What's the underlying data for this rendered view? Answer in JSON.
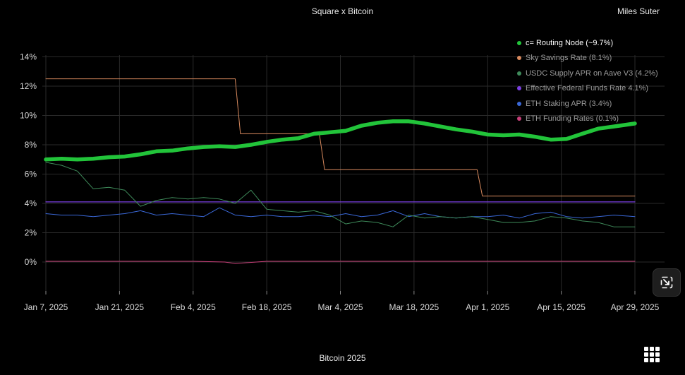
{
  "header": {
    "title": "Square x Bitcoin",
    "author": "Miles Suter"
  },
  "footer": {
    "title": "Bitcoin 2025"
  },
  "icons": {
    "zoom": "collapse-arrow-icon",
    "menu": "grid-menu-icon"
  },
  "chart_data": {
    "type": "line",
    "title": "",
    "xlabel": "",
    "ylabel": "",
    "ylim": [
      -2,
      14
    ],
    "y_ticks": [
      0,
      2,
      4,
      6,
      8,
      10,
      12,
      14
    ],
    "y_tick_labels": [
      "0%",
      "2%",
      "4%",
      "6%",
      "8%",
      "10%",
      "12%",
      "14%"
    ],
    "x_range": [
      "2025-01-07",
      "2025-04-29"
    ],
    "x_ticks": [
      "2025-01-07",
      "2025-01-21",
      "2025-02-04",
      "2025-02-18",
      "2025-03-04",
      "2025-03-18",
      "2025-04-01",
      "2025-04-15",
      "2025-04-29"
    ],
    "x_tick_labels": [
      "Jan 7, 2025",
      "Jan 21, 2025",
      "Feb 4, 2025",
      "Feb 18, 2025",
      "Mar 4, 2025",
      "Mar 18, 2025",
      "Apr 1, 2025",
      "Apr 15, 2025",
      "Apr 29, 2025"
    ],
    "grid": true,
    "legend_position": "top-right",
    "series": [
      {
        "name": "c= Routing Node (~9.7%)",
        "color": "#22c43a",
        "x": [
          "2025-01-07",
          "2025-01-10",
          "2025-01-13",
          "2025-01-16",
          "2025-01-19",
          "2025-01-22",
          "2025-01-25",
          "2025-01-28",
          "2025-01-31",
          "2025-02-03",
          "2025-02-06",
          "2025-02-09",
          "2025-02-12",
          "2025-02-15",
          "2025-02-18",
          "2025-02-21",
          "2025-02-24",
          "2025-02-27",
          "2025-03-02",
          "2025-03-05",
          "2025-03-08",
          "2025-03-11",
          "2025-03-14",
          "2025-03-17",
          "2025-03-20",
          "2025-03-23",
          "2025-03-26",
          "2025-03-29",
          "2025-04-01",
          "2025-04-04",
          "2025-04-07",
          "2025-04-10",
          "2025-04-13",
          "2025-04-16",
          "2025-04-19",
          "2025-04-22",
          "2025-04-25",
          "2025-04-29"
        ],
        "values": [
          7.0,
          7.05,
          7.0,
          7.05,
          7.15,
          7.2,
          7.35,
          7.55,
          7.6,
          7.75,
          7.85,
          7.9,
          7.85,
          8.0,
          8.2,
          8.35,
          8.45,
          8.75,
          8.85,
          8.95,
          9.3,
          9.5,
          9.6,
          9.6,
          9.45,
          9.25,
          9.05,
          8.9,
          8.7,
          8.65,
          8.7,
          8.55,
          8.35,
          8.4,
          8.75,
          9.1,
          9.25,
          9.45
        ]
      },
      {
        "name": "Sky Savings Rate (8.1%)",
        "color": "#d98a5e",
        "x": [
          "2025-01-07",
          "2025-02-12",
          "2025-02-13",
          "2025-02-28",
          "2025-03-01",
          "2025-03-30",
          "2025-03-31",
          "2025-04-29"
        ],
        "values": [
          12.5,
          12.5,
          8.75,
          8.75,
          6.3,
          6.3,
          4.5,
          4.5
        ]
      },
      {
        "name": "USDC Supply APR on Aave V3 (4.2%)",
        "color": "#3e8a5a",
        "x": [
          "2025-01-07",
          "2025-01-10",
          "2025-01-13",
          "2025-01-16",
          "2025-01-19",
          "2025-01-22",
          "2025-01-25",
          "2025-01-28",
          "2025-01-31",
          "2025-02-03",
          "2025-02-06",
          "2025-02-09",
          "2025-02-12",
          "2025-02-15",
          "2025-02-18",
          "2025-02-21",
          "2025-02-24",
          "2025-02-27",
          "2025-03-02",
          "2025-03-05",
          "2025-03-08",
          "2025-03-11",
          "2025-03-14",
          "2025-03-17",
          "2025-03-20",
          "2025-03-23",
          "2025-03-26",
          "2025-03-29",
          "2025-04-01",
          "2025-04-04",
          "2025-04-07",
          "2025-04-10",
          "2025-04-13",
          "2025-04-16",
          "2025-04-19",
          "2025-04-22",
          "2025-04-25",
          "2025-04-29"
        ],
        "values": [
          6.8,
          6.6,
          6.2,
          5.0,
          5.1,
          4.9,
          3.8,
          4.2,
          4.4,
          4.3,
          4.4,
          4.3,
          4.0,
          4.9,
          3.6,
          3.5,
          3.4,
          3.5,
          3.2,
          2.6,
          2.8,
          2.7,
          2.4,
          3.2,
          3.0,
          3.1,
          3.0,
          3.1,
          2.9,
          2.7,
          2.7,
          2.8,
          3.1,
          3.0,
          2.8,
          2.7,
          2.4,
          2.4
        ]
      },
      {
        "name": "Effective Federal Funds Rate 4.1%)",
        "color": "#7b3fe4",
        "x": [
          "2025-01-07",
          "2025-04-29"
        ],
        "values": [
          4.1,
          4.1
        ]
      },
      {
        "name": "ETH Staking APR (3.4%)",
        "color": "#3a68d8",
        "x": [
          "2025-01-07",
          "2025-01-10",
          "2025-01-13",
          "2025-01-16",
          "2025-01-19",
          "2025-01-22",
          "2025-01-25",
          "2025-01-28",
          "2025-01-31",
          "2025-02-03",
          "2025-02-06",
          "2025-02-09",
          "2025-02-12",
          "2025-02-15",
          "2025-02-18",
          "2025-02-21",
          "2025-02-24",
          "2025-02-27",
          "2025-03-02",
          "2025-03-05",
          "2025-03-08",
          "2025-03-11",
          "2025-03-14",
          "2025-03-17",
          "2025-03-20",
          "2025-03-23",
          "2025-03-26",
          "2025-03-29",
          "2025-04-01",
          "2025-04-04",
          "2025-04-07",
          "2025-04-10",
          "2025-04-13",
          "2025-04-16",
          "2025-04-19",
          "2025-04-22",
          "2025-04-25",
          "2025-04-29"
        ],
        "values": [
          3.3,
          3.2,
          3.2,
          3.1,
          3.2,
          3.3,
          3.5,
          3.2,
          3.3,
          3.2,
          3.1,
          3.7,
          3.2,
          3.1,
          3.2,
          3.1,
          3.1,
          3.2,
          3.1,
          3.3,
          3.1,
          3.2,
          3.5,
          3.1,
          3.3,
          3.1,
          3.0,
          3.1,
          3.1,
          3.2,
          3.0,
          3.3,
          3.4,
          3.1,
          3.0,
          3.1,
          3.2,
          3.1
        ]
      },
      {
        "name": "ETH Funding Rates (0.1%)",
        "color": "#c9407a",
        "x": [
          "2025-01-07",
          "2025-01-21",
          "2025-02-04",
          "2025-02-10",
          "2025-02-12",
          "2025-02-18",
          "2025-03-04",
          "2025-03-18",
          "2025-04-01",
          "2025-04-15",
          "2025-04-29"
        ],
        "values": [
          0.05,
          0.05,
          0.05,
          0.0,
          -0.1,
          0.05,
          0.05,
          0.05,
          0.05,
          0.05,
          0.05
        ]
      }
    ]
  }
}
